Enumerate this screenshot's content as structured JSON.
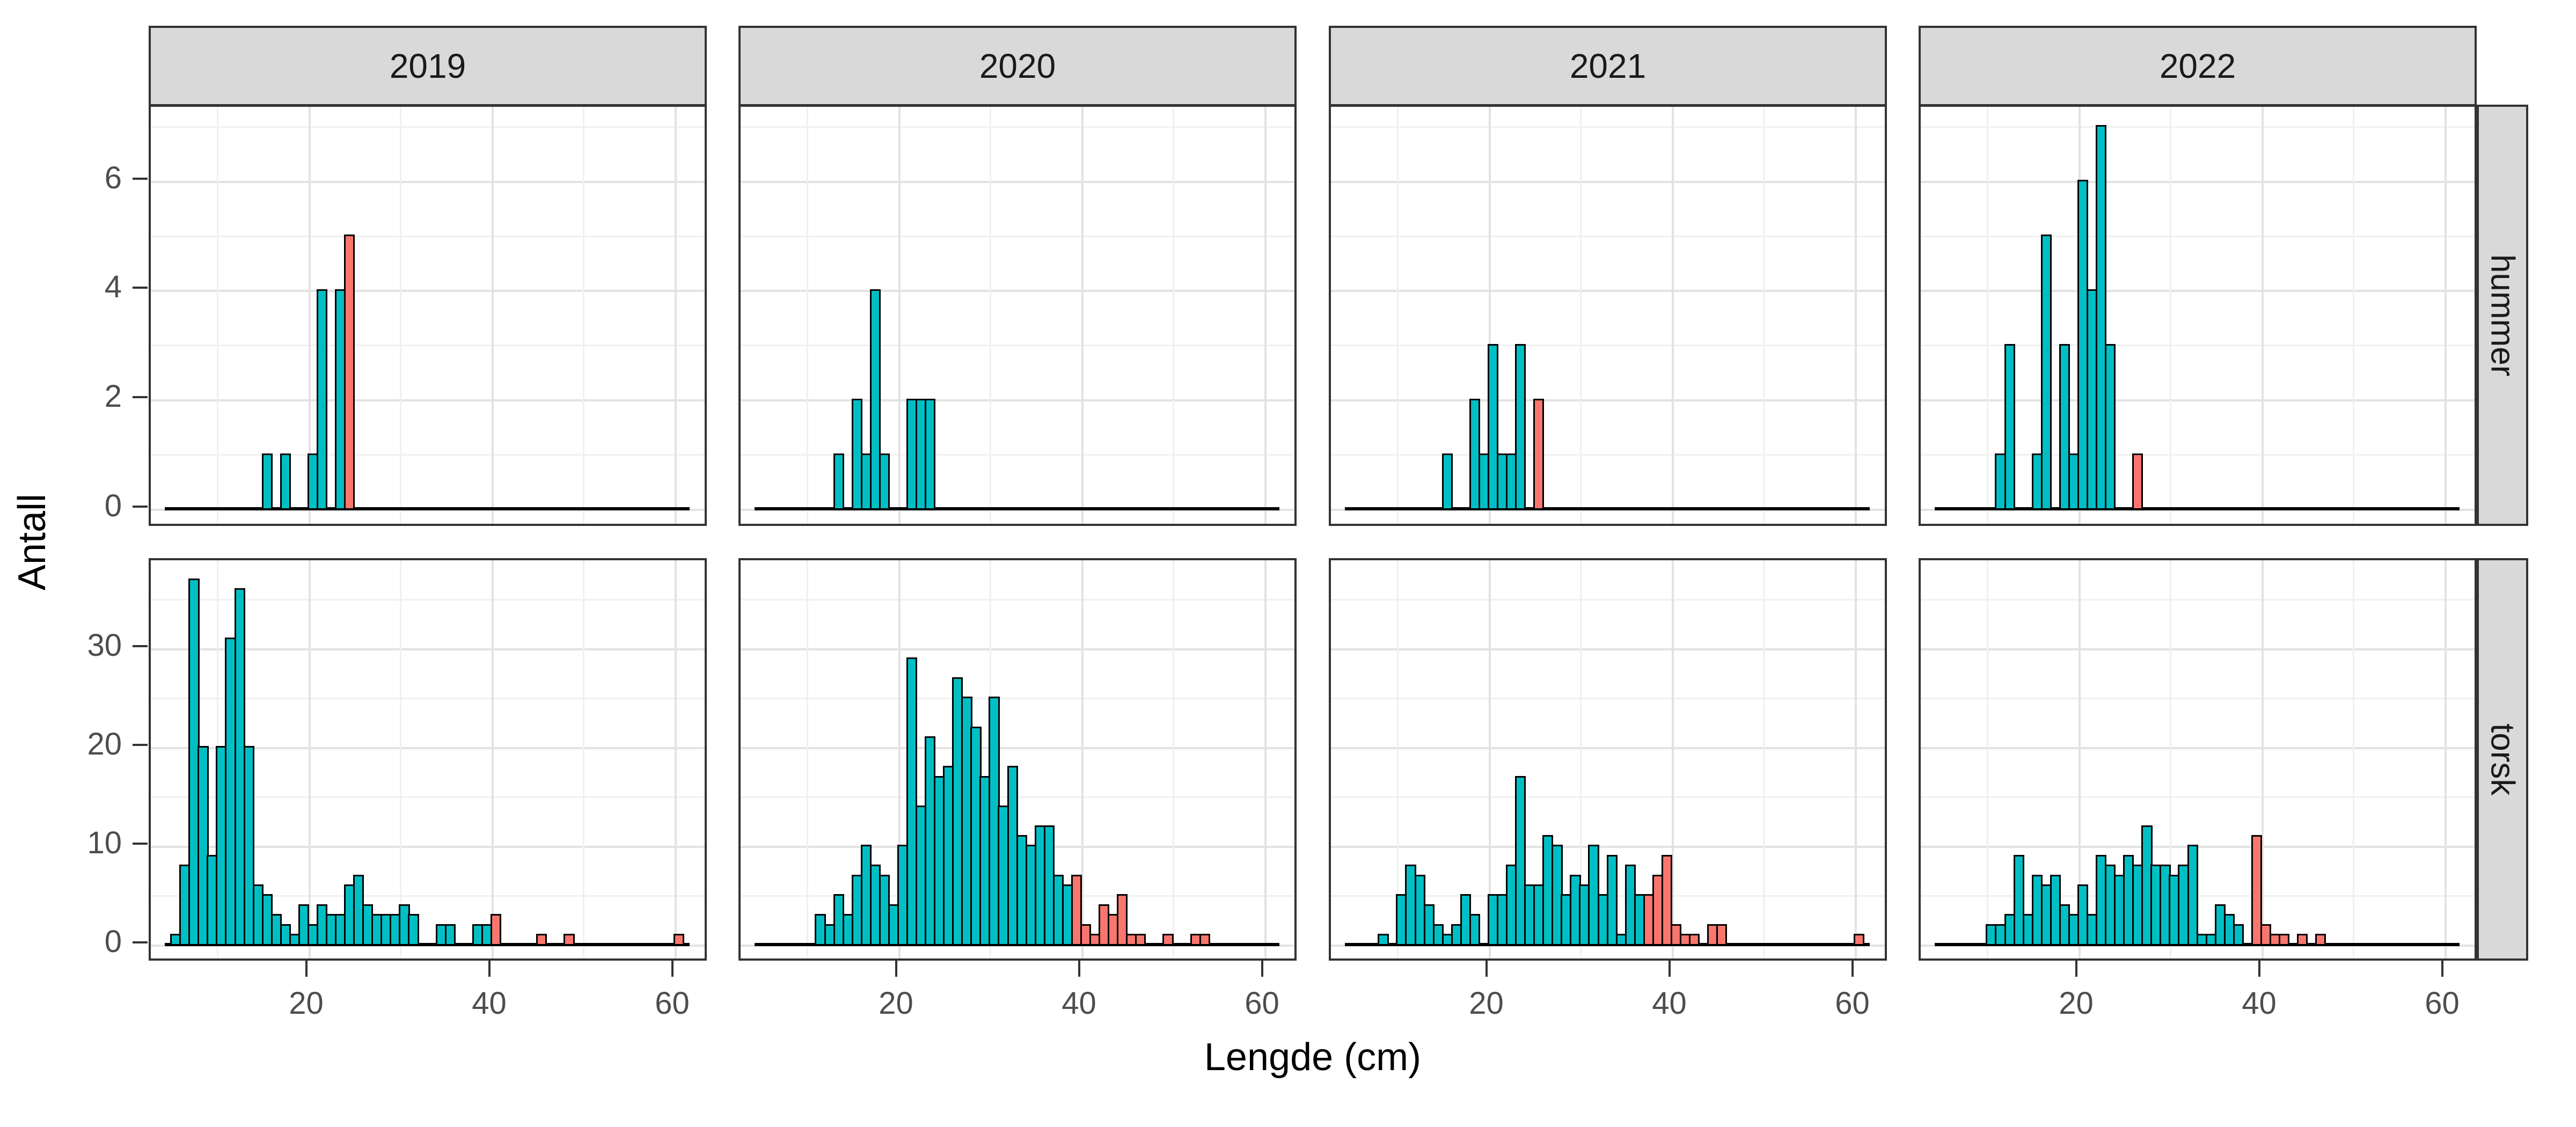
{
  "chart_data": {
    "type": "bar",
    "subtype": "faceted-histogram",
    "xlabel": "Lengde (cm)",
    "ylabel": "Antall",
    "binwidth_cm": 1,
    "x_ticks": [
      20,
      40,
      60
    ],
    "x_gridlines_major": [
      20,
      40,
      60
    ],
    "x_gridlines_minor": [
      10,
      30,
      50
    ],
    "col_facets": [
      "2019",
      "2020",
      "2021",
      "2022"
    ],
    "row_facets": [
      {
        "label": "hummer",
        "y_ticks": [
          0,
          2,
          4,
          6
        ],
        "y_gridlines_minor": [
          1,
          3,
          5,
          7
        ],
        "ylim": [
          0,
          7.7
        ]
      },
      {
        "label": "torsk",
        "y_ticks": [
          0,
          10,
          20,
          30
        ],
        "y_gridlines_minor": [
          5,
          15,
          25,
          35
        ],
        "ylim": [
          0,
          40.7
        ]
      }
    ],
    "colors": {
      "teal": "#00BFC4",
      "salmon": "#F8766D",
      "bar_outline": "#000000",
      "strip_bg": "#d9d9d9",
      "panel_border": "#333333",
      "grid_major": "#e2e2e2",
      "grid_minor": "#f0f0f0",
      "tick_text": "#4d4d4d"
    },
    "panels": {
      "hummer": {
        "2019": {
          "teal": [
            [
              15,
              1
            ],
            [
              17,
              1
            ],
            [
              20,
              1
            ],
            [
              21,
              4
            ],
            [
              23,
              4
            ]
          ],
          "salmon": [
            [
              24,
              5
            ]
          ]
        },
        "2020": {
          "teal": [
            [
              13,
              1
            ],
            [
              15,
              2
            ],
            [
              16,
              1
            ],
            [
              17,
              4
            ],
            [
              18,
              1
            ],
            [
              21,
              2
            ],
            [
              22,
              2
            ],
            [
              23,
              2
            ]
          ],
          "salmon": []
        },
        "2021": {
          "teal": [
            [
              15,
              1
            ],
            [
              18,
              2
            ],
            [
              19,
              1
            ],
            [
              20,
              3
            ],
            [
              21,
              1
            ],
            [
              22,
              1
            ],
            [
              23,
              3
            ]
          ],
          "salmon": [
            [
              25,
              2
            ]
          ]
        },
        "2022": {
          "teal": [
            [
              11,
              1
            ],
            [
              12,
              3
            ],
            [
              15,
              1
            ],
            [
              16,
              5
            ],
            [
              18,
              3
            ],
            [
              19,
              1
            ],
            [
              20,
              6
            ],
            [
              21,
              4
            ],
            [
              22,
              7
            ],
            [
              23,
              3
            ]
          ],
          "salmon": [
            [
              26,
              1
            ]
          ]
        }
      },
      "torsk": {
        "2019": {
          "teal": [
            [
              5,
              1
            ],
            [
              6,
              8
            ],
            [
              7,
              37
            ],
            [
              8,
              20
            ],
            [
              9,
              9
            ],
            [
              10,
              20
            ],
            [
              11,
              31
            ],
            [
              12,
              36
            ],
            [
              13,
              20
            ],
            [
              14,
              6
            ],
            [
              15,
              5
            ],
            [
              16,
              3
            ],
            [
              17,
              2
            ],
            [
              18,
              1
            ],
            [
              19,
              4
            ],
            [
              20,
              2
            ],
            [
              21,
              4
            ],
            [
              22,
              3
            ],
            [
              23,
              3
            ],
            [
              24,
              6
            ],
            [
              25,
              7
            ],
            [
              26,
              4
            ],
            [
              27,
              3
            ],
            [
              28,
              3
            ],
            [
              29,
              3
            ],
            [
              30,
              4
            ],
            [
              31,
              3
            ],
            [
              34,
              2
            ],
            [
              35,
              2
            ],
            [
              38,
              2
            ],
            [
              39,
              2
            ]
          ],
          "salmon": [
            [
              40,
              3
            ],
            [
              45,
              1
            ],
            [
              48,
              1
            ],
            [
              60,
              1
            ]
          ]
        },
        "2020": {
          "teal": [
            [
              11,
              3
            ],
            [
              12,
              2
            ],
            [
              13,
              5
            ],
            [
              14,
              3
            ],
            [
              15,
              7
            ],
            [
              16,
              10
            ],
            [
              17,
              8
            ],
            [
              18,
              7
            ],
            [
              19,
              4
            ],
            [
              20,
              10
            ],
            [
              21,
              29
            ],
            [
              22,
              14
            ],
            [
              23,
              21
            ],
            [
              24,
              17
            ],
            [
              25,
              18
            ],
            [
              26,
              27
            ],
            [
              27,
              25
            ],
            [
              28,
              22
            ],
            [
              29,
              17
            ],
            [
              30,
              25
            ],
            [
              31,
              14
            ],
            [
              32,
              18
            ],
            [
              33,
              11
            ],
            [
              34,
              10
            ],
            [
              35,
              12
            ],
            [
              36,
              12
            ],
            [
              37,
              7
            ],
            [
              38,
              6
            ]
          ],
          "salmon": [
            [
              39,
              7
            ],
            [
              40,
              2
            ],
            [
              41,
              1
            ],
            [
              42,
              4
            ],
            [
              43,
              3
            ],
            [
              44,
              5
            ],
            [
              45,
              1
            ],
            [
              46,
              1
            ],
            [
              49,
              1
            ],
            [
              52,
              1
            ],
            [
              53,
              1
            ]
          ]
        },
        "2021": {
          "teal": [
            [
              8,
              1
            ],
            [
              10,
              5
            ],
            [
              11,
              8
            ],
            [
              12,
              7
            ],
            [
              13,
              4
            ],
            [
              14,
              2
            ],
            [
              15,
              1
            ],
            [
              16,
              2
            ],
            [
              17,
              5
            ],
            [
              18,
              3
            ],
            [
              20,
              5
            ],
            [
              21,
              5
            ],
            [
              22,
              8
            ],
            [
              23,
              17
            ],
            [
              24,
              6
            ],
            [
              25,
              6
            ],
            [
              26,
              11
            ],
            [
              27,
              10
            ],
            [
              28,
              5
            ],
            [
              29,
              7
            ],
            [
              30,
              6
            ],
            [
              31,
              10
            ],
            [
              32,
              5
            ],
            [
              33,
              9
            ],
            [
              34,
              1
            ],
            [
              35,
              8
            ],
            [
              36,
              5
            ]
          ],
          "salmon": [
            [
              37,
              5
            ],
            [
              38,
              7
            ],
            [
              39,
              9
            ],
            [
              40,
              2
            ],
            [
              41,
              1
            ],
            [
              42,
              1
            ],
            [
              44,
              2
            ],
            [
              45,
              2
            ],
            [
              60,
              1
            ]
          ]
        },
        "2022": {
          "teal": [
            [
              10,
              2
            ],
            [
              11,
              2
            ],
            [
              12,
              3
            ],
            [
              13,
              9
            ],
            [
              14,
              3
            ],
            [
              15,
              7
            ],
            [
              16,
              6
            ],
            [
              17,
              7
            ],
            [
              18,
              4
            ],
            [
              19,
              3
            ],
            [
              20,
              6
            ],
            [
              21,
              3
            ],
            [
              22,
              9
            ],
            [
              23,
              8
            ],
            [
              24,
              7
            ],
            [
              25,
              9
            ],
            [
              26,
              8
            ],
            [
              27,
              12
            ],
            [
              28,
              8
            ],
            [
              29,
              8
            ],
            [
              30,
              7
            ],
            [
              31,
              8
            ],
            [
              32,
              10
            ],
            [
              33,
              1
            ],
            [
              34,
              1
            ],
            [
              35,
              4
            ],
            [
              36,
              3
            ],
            [
              37,
              2
            ]
          ],
          "salmon": [
            [
              39,
              11
            ],
            [
              40,
              2
            ],
            [
              41,
              1
            ],
            [
              42,
              1
            ],
            [
              44,
              1
            ],
            [
              46,
              1
            ]
          ]
        }
      }
    }
  }
}
